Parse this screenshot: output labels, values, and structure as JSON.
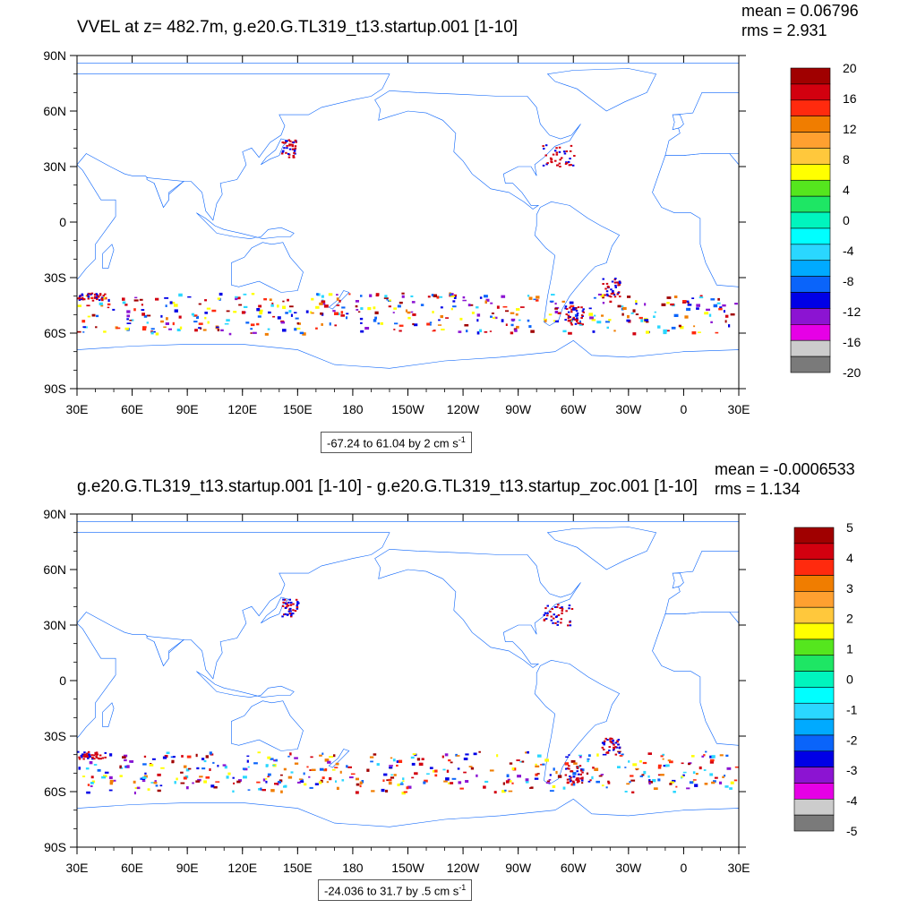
{
  "chart_data": [
    {
      "type": "heatmap",
      "title": "VVEL at z= 482.7m, g.e20.G.TL319_t13.startup.001 [1-10]",
      "mean_text": "mean = 0.06796",
      "rms_text": "rms = 2.931",
      "x_ticks": [
        "30E",
        "60E",
        "90E",
        "120E",
        "150E",
        "180",
        "150W",
        "120W",
        "90W",
        "60W",
        "30W",
        "0",
        "30E"
      ],
      "y_ticks": [
        "90N",
        "60N",
        "30N",
        "0",
        "30S",
        "60S",
        "90S"
      ],
      "xlim": [
        30,
        390
      ],
      "ylim": [
        -90,
        90
      ],
      "colorbar": {
        "labels": [
          "20",
          "16",
          "12",
          "8",
          "4",
          "0",
          "-4",
          "-8",
          "-12",
          "-16",
          "-20"
        ],
        "colors": [
          "#a00000",
          "#d2000f",
          "#ff2a0e",
          "#f07d00",
          "#ffa030",
          "#ffc83c",
          "#ffff00",
          "#55e61e",
          "#1ee664",
          "#00f5be",
          "#00ffff",
          "#2ad7ff",
          "#00aaff",
          "#0a64fa",
          "#0000e6",
          "#8c14d2",
          "#e600e6",
          "#cccccc",
          "#7a7a7a"
        ]
      },
      "range_text": "-67.24 to 61.04 by 2 cm s",
      "range_sup": "-1",
      "units": "cm s-1"
    },
    {
      "type": "heatmap",
      "title": "g.e20.G.TL319_t13.startup.001 [1-10] - g.e20.G.TL319_t13.startup_zoc.001 [1-10]",
      "mean_text": "mean = -0.0006533",
      "rms_text": "rms = 1.134",
      "x_ticks": [
        "30E",
        "60E",
        "90E",
        "120E",
        "150E",
        "180",
        "150W",
        "120W",
        "90W",
        "60W",
        "30W",
        "0",
        "30E"
      ],
      "y_ticks": [
        "90N",
        "60N",
        "30N",
        "0",
        "30S",
        "60S",
        "90S"
      ],
      "xlim": [
        30,
        390
      ],
      "ylim": [
        -90,
        90
      ],
      "colorbar": {
        "labels": [
          "5",
          "4",
          "3",
          "2",
          "1",
          "0",
          "-1",
          "-2",
          "-3",
          "-4",
          "-5"
        ],
        "colors": [
          "#a00000",
          "#d2000f",
          "#ff2a0e",
          "#f07d00",
          "#ffa030",
          "#ffc83c",
          "#ffff00",
          "#55e61e",
          "#1ee664",
          "#00f5be",
          "#00ffff",
          "#2ad7ff",
          "#00aaff",
          "#0a64fa",
          "#0000e6",
          "#8c14d2",
          "#e600e6",
          "#cccccc",
          "#7a7a7a"
        ]
      },
      "range_text": "-24.036 to 31.7 by .5 cm s",
      "range_sup": "-1",
      "units": "cm s-1"
    }
  ]
}
